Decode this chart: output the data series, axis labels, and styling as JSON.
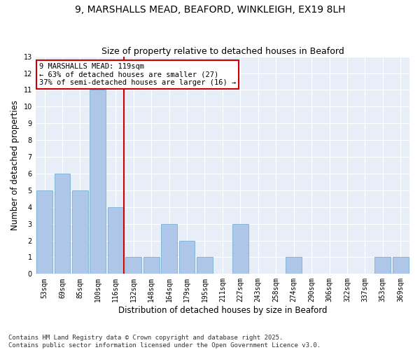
{
  "title": "9, MARSHALLS MEAD, BEAFORD, WINKLEIGH, EX19 8LH",
  "subtitle": "Size of property relative to detached houses in Beaford",
  "xlabel": "Distribution of detached houses by size in Beaford",
  "ylabel": "Number of detached properties",
  "categories": [
    "53sqm",
    "69sqm",
    "85sqm",
    "100sqm",
    "116sqm",
    "132sqm",
    "148sqm",
    "164sqm",
    "179sqm",
    "195sqm",
    "211sqm",
    "227sqm",
    "243sqm",
    "258sqm",
    "274sqm",
    "290sqm",
    "306sqm",
    "322sqm",
    "337sqm",
    "353sqm",
    "369sqm"
  ],
  "values": [
    5,
    6,
    5,
    11,
    4,
    1,
    1,
    3,
    2,
    1,
    0,
    3,
    0,
    0,
    1,
    0,
    0,
    0,
    0,
    1,
    1
  ],
  "bar_color": "#aec6e8",
  "bar_edge_color": "#7bafd4",
  "reference_line_index": 4,
  "reference_line_color": "#cc0000",
  "annotation_text": "9 MARSHALLS MEAD: 119sqm\n← 63% of detached houses are smaller (27)\n37% of semi-detached houses are larger (16) →",
  "annotation_box_color": "white",
  "annotation_box_edge": "#cc0000",
  "ylim": [
    0,
    13
  ],
  "yticks": [
    0,
    1,
    2,
    3,
    4,
    5,
    6,
    7,
    8,
    9,
    10,
    11,
    12,
    13
  ],
  "background_color": "#e8eef8",
  "grid_color": "white",
  "footer": "Contains HM Land Registry data © Crown copyright and database right 2025.\nContains public sector information licensed under the Open Government Licence v3.0.",
  "title_fontsize": 10,
  "subtitle_fontsize": 9,
  "axis_label_fontsize": 8.5,
  "tick_fontsize": 7,
  "annotation_fontsize": 7.5,
  "footer_fontsize": 6.5
}
